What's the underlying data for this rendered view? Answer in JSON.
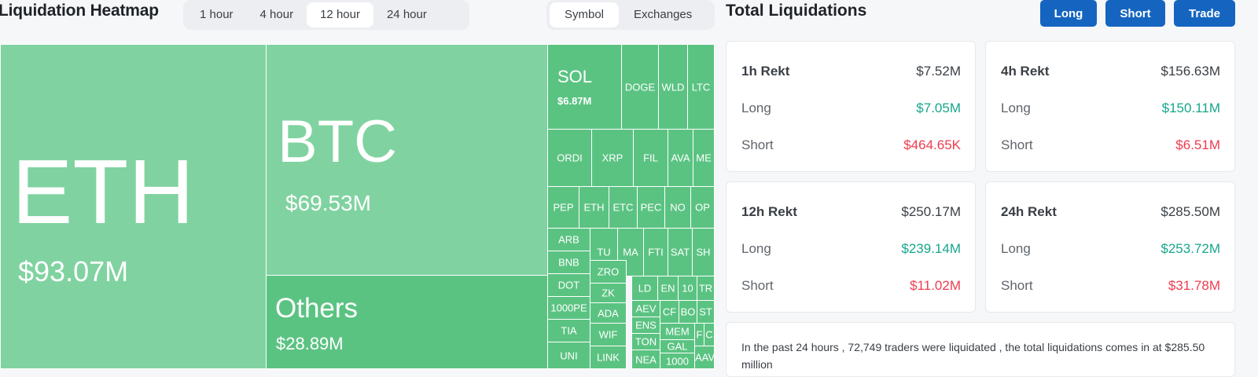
{
  "heatmap": {
    "title": "Liquidation Heatmap",
    "time_options": [
      "1 hour",
      "4 hour",
      "12 hour",
      "24 hour"
    ],
    "time_selected": "12 hour",
    "view_options": [
      "Symbol",
      "Exchanges"
    ],
    "view_selected": "Symbol",
    "tiles": [
      {
        "symbol": "ETH",
        "value": "$93.07M"
      },
      {
        "symbol": "BTC",
        "value": "$69.53M"
      },
      {
        "symbol": "Others",
        "value": "$28.89M"
      },
      {
        "symbol": "SOL",
        "value": "$6.87M"
      },
      {
        "symbol": "DOGE"
      },
      {
        "symbol": "WLD"
      },
      {
        "symbol": "LTC"
      },
      {
        "symbol": "ORDI"
      },
      {
        "symbol": "XRP"
      },
      {
        "symbol": "FIL"
      },
      {
        "symbol": "AVA"
      },
      {
        "symbol": "ME"
      },
      {
        "symbol": "PEP"
      },
      {
        "symbol": "ETH"
      },
      {
        "symbol": "ETC"
      },
      {
        "symbol": "PEC"
      },
      {
        "symbol": "NO"
      },
      {
        "symbol": "OP"
      },
      {
        "symbol": "ARB"
      },
      {
        "symbol": "TU"
      },
      {
        "symbol": "MA"
      },
      {
        "symbol": "FTI"
      },
      {
        "symbol": "SAT"
      },
      {
        "symbol": "SH"
      },
      {
        "symbol": "BNB"
      },
      {
        "symbol": "ZRO"
      },
      {
        "symbol": "LD"
      },
      {
        "symbol": "EN"
      },
      {
        "symbol": "10"
      },
      {
        "symbol": "TR"
      },
      {
        "symbol": "DOT"
      },
      {
        "symbol": "ZK"
      },
      {
        "symbol": "AEV"
      },
      {
        "symbol": "CF"
      },
      {
        "symbol": "BO"
      },
      {
        "symbol": "ST"
      },
      {
        "symbol": "1000PE"
      },
      {
        "symbol": "ADA"
      },
      {
        "symbol": "ENS"
      },
      {
        "symbol": "MEM"
      },
      {
        "symbol": "F"
      },
      {
        "symbol": "C"
      },
      {
        "symbol": "TIA"
      },
      {
        "symbol": "WIF"
      },
      {
        "symbol": "TON"
      },
      {
        "symbol": "GAL"
      },
      {
        "symbol": "UNI"
      },
      {
        "symbol": "LINK"
      },
      {
        "symbol": "NEA"
      },
      {
        "symbol": "1000"
      },
      {
        "symbol": "AAV"
      }
    ]
  },
  "total": {
    "title": "Total Liquidations",
    "buttons": [
      "Long",
      "Short",
      "Trade"
    ],
    "cards": [
      {
        "label": "1h Rekt",
        "total": "$7.52M",
        "long_label": "Long",
        "long": "$7.05M",
        "short_label": "Short",
        "short": "$464.65K"
      },
      {
        "label": "4h Rekt",
        "total": "$156.63M",
        "long_label": "Long",
        "long": "$150.11M",
        "short_label": "Short",
        "short": "$6.51M"
      },
      {
        "label": "12h Rekt",
        "total": "$250.17M",
        "long_label": "Long",
        "long": "$239.14M",
        "short_label": "Short",
        "short": "$11.02M"
      },
      {
        "label": "24h Rekt",
        "total": "$285.50M",
        "long_label": "Long",
        "long": "$253.72M",
        "short_label": "Short",
        "short": "$31.78M"
      }
    ],
    "summary": "In the past 24 hours , 72,749 traders were liquidated , the total liquidations comes in at $285.50 million"
  },
  "colors": {
    "tile_light": "#80d3a0",
    "tile_mid": "#6fcc91",
    "tile_dark": "#5bc382",
    "button": "#1565c0",
    "long": "#17a68b",
    "short": "#ef3c4f"
  }
}
